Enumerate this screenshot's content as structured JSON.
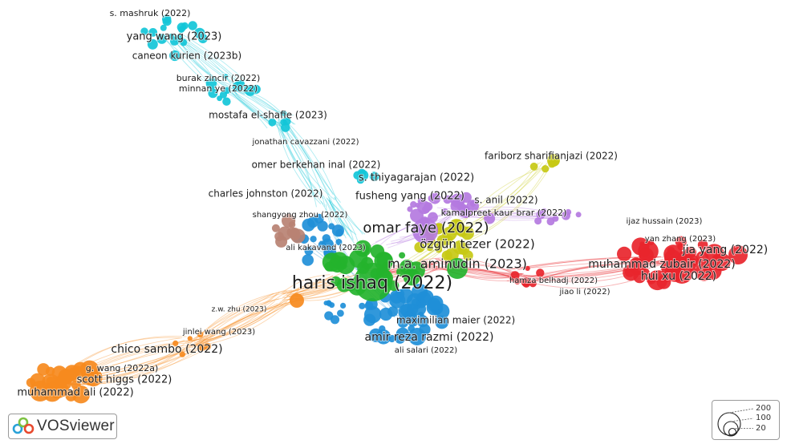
{
  "app": {
    "name": "VOSviewer"
  },
  "size_legend": {
    "values": [
      "200",
      "100",
      "20"
    ]
  },
  "clusters": {
    "cyan": "#12c6d8",
    "blue": "#1f8fd8",
    "green": "#24b32c",
    "yellow": "#c7c914",
    "purple": "#b479e0",
    "red": "#e8252c",
    "orange": "#f68a1e",
    "brown": "#b98273"
  },
  "labels": [
    {
      "id": "s-mashruk",
      "text": "s. mashruk (2022)",
      "cluster": "cyan"
    },
    {
      "id": "yang-wang",
      "text": "yang wang (2023)",
      "cluster": "cyan"
    },
    {
      "id": "caneon-kurien",
      "text": "caneon kurien (2023b)",
      "cluster": "cyan"
    },
    {
      "id": "burak-zincir",
      "text": "burak zincir (2022)",
      "cluster": "cyan"
    },
    {
      "id": "minnan-ye",
      "text": "minnan ye (2022)",
      "cluster": "cyan"
    },
    {
      "id": "mostafa-el-shafie",
      "text": "mostafa el-shafie (2023)",
      "cluster": "cyan"
    },
    {
      "id": "jonathan-cavazzani",
      "text": "jonathan cavazzani (2022)",
      "cluster": "cyan"
    },
    {
      "id": "omer-berkehan-inal",
      "text": "omer berkehan inal (2022)",
      "cluster": "cyan"
    },
    {
      "id": "s-thiyagarajan",
      "text": "s. thiyagarajan (2022)",
      "cluster": "cyan"
    },
    {
      "id": "charles-johnston",
      "text": "charles johnston (2022)",
      "cluster": "blue"
    },
    {
      "id": "fusheng-yang",
      "text": "fusheng yang (2022)",
      "cluster": "blue"
    },
    {
      "id": "fariborz-sharifianjazi",
      "text": "fariborz sharifianjazi (2022)",
      "cluster": "yellow"
    },
    {
      "id": "s-anil",
      "text": "s. anil (2022)",
      "cluster": "yellow"
    },
    {
      "id": "kamalpreet-kaur-brar",
      "text": "kamalpreet kaur brar (2022)",
      "cluster": "purple"
    },
    {
      "id": "shangyong-zhou",
      "text": "shangyong zhou (2022)",
      "cluster": "brown"
    },
    {
      "id": "omar-faye",
      "text": "omar faye (2022)",
      "cluster": "yellow"
    },
    {
      "id": "ozgun-tezer",
      "text": "özgün tezer (2022)",
      "cluster": "yellow"
    },
    {
      "id": "ali-kakavand",
      "text": "ali kakavand (2023)",
      "cluster": "brown"
    },
    {
      "id": "ma-aminudin",
      "text": "m.a. aminudin (2023)",
      "cluster": "green"
    },
    {
      "id": "haris-ishaq",
      "text": "haris ishaq (2022)",
      "cluster": "green"
    },
    {
      "id": "ijaz-hussain",
      "text": "ijaz hussain (2023)",
      "cluster": "red"
    },
    {
      "id": "yan-zhang",
      "text": "yan zhang (2023)",
      "cluster": "red"
    },
    {
      "id": "jia-yang",
      "text": "jia yang (2022)",
      "cluster": "red"
    },
    {
      "id": "muhammad-zubair",
      "text": "muhammad zubair (2022)",
      "cluster": "red"
    },
    {
      "id": "hui-xu",
      "text": "hui xu (2022)",
      "cluster": "red"
    },
    {
      "id": "hamza-belhadj",
      "text": "hamza belhadj (2022)",
      "cluster": "red"
    },
    {
      "id": "jiao-li",
      "text": "jiao li (2022)",
      "cluster": "red"
    },
    {
      "id": "zw-zhu",
      "text": "z.w. zhu (2023)",
      "cluster": "orange"
    },
    {
      "id": "jinlei-wang",
      "text": "jinlei wang (2023)",
      "cluster": "orange"
    },
    {
      "id": "maximilian-maier",
      "text": "maximilian maier (2022)",
      "cluster": "blue"
    },
    {
      "id": "amir-reza-razmi",
      "text": "amir reza razmi (2022)",
      "cluster": "blue"
    },
    {
      "id": "ali-salari",
      "text": "ali salari (2022)",
      "cluster": "blue"
    },
    {
      "id": "chico-sambo",
      "text": "chico sambo (2022)",
      "cluster": "orange"
    },
    {
      "id": "g-wang",
      "text": "g. wang (2022a)",
      "cluster": "orange"
    },
    {
      "id": "scott-higgs",
      "text": "scott higgs (2022)",
      "cluster": "orange"
    },
    {
      "id": "muhammad-ali",
      "text": "muhammad ali (2022)",
      "cluster": "orange"
    }
  ]
}
